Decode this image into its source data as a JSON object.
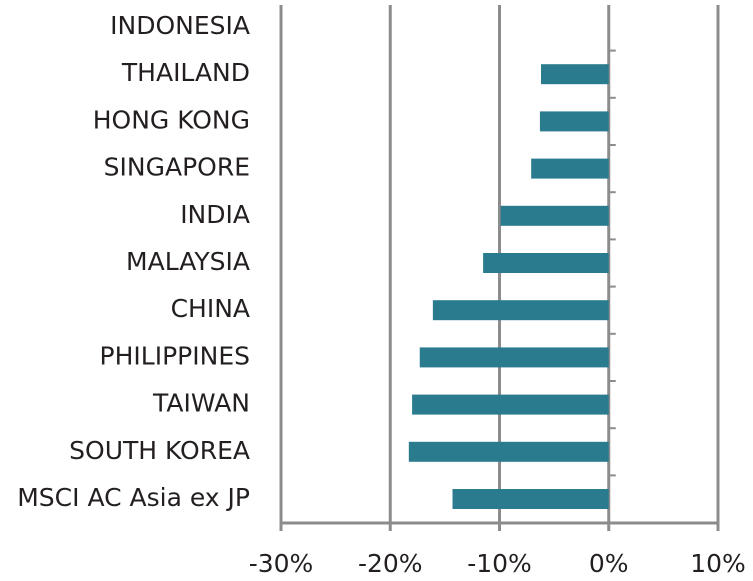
{
  "chart_data": {
    "type": "barh",
    "categories": [
      "INDONESIA",
      "THAILAND",
      "HONG KONG",
      "SINGAPORE",
      "INDIA",
      "MALAYSIA",
      "CHINA",
      "PHILIPPINES",
      "TAIWAN",
      "SOUTH KOREA",
      "MSCI AC Asia ex JP"
    ],
    "values": [
      0,
      -6.2,
      -6.3,
      -7.1,
      -9.9,
      -11.5,
      -16.1,
      -17.3,
      -18.0,
      -18.3,
      -14.3
    ],
    "color": "#2a7b8e",
    "xlim": [
      -30,
      10
    ],
    "xticks": [
      {
        "value": -30,
        "label": "-30%"
      },
      {
        "value": -20,
        "label": "-20%"
      },
      {
        "value": -10,
        "label": "-10%"
      },
      {
        "value": 0,
        "label": "0%"
      },
      {
        "value": 10,
        "label": "10%"
      }
    ],
    "grid": true
  }
}
